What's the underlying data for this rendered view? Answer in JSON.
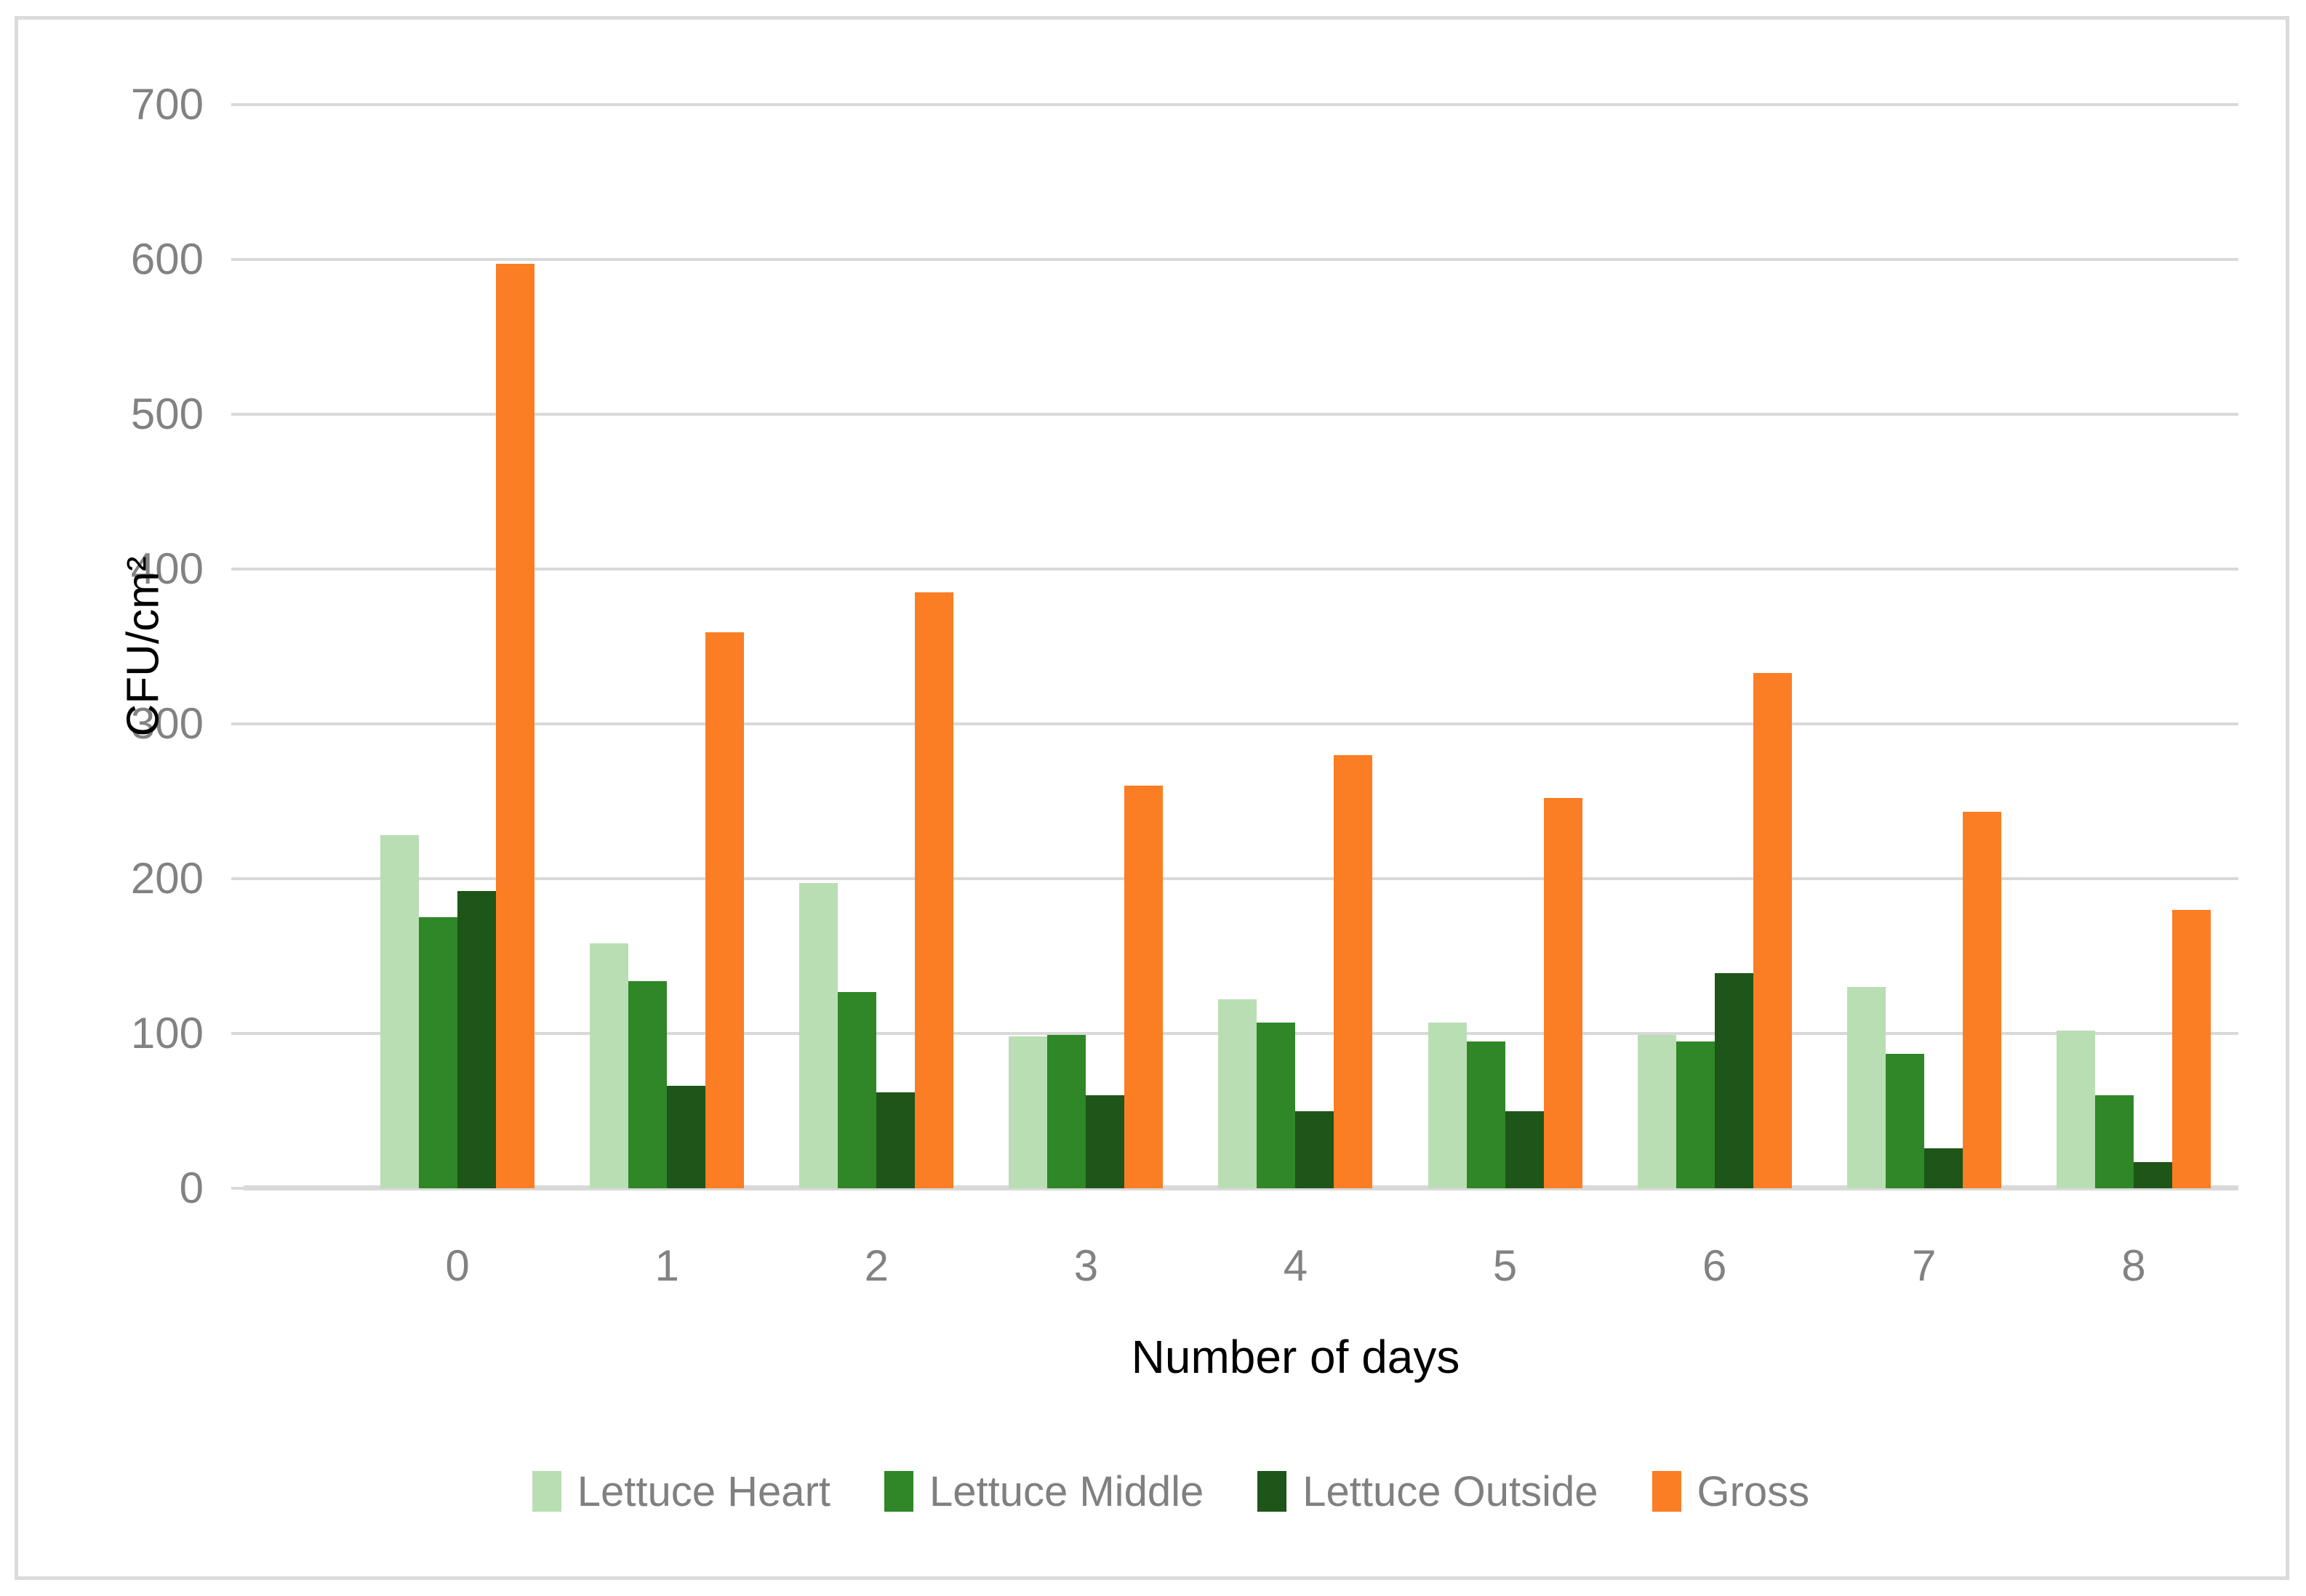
{
  "chart_data": {
    "type": "bar",
    "title": "",
    "xlabel": "Number of days",
    "ylabel": "CFU/cm²",
    "categories": [
      "0",
      "1",
      "2",
      "3",
      "4",
      "5",
      "6",
      "7",
      "8"
    ],
    "series": [
      {
        "name": "Lettuce Heart",
        "color": "#B9DEB3",
        "values": [
          228,
          158,
          197,
          98,
          122,
          107,
          99,
          130,
          102
        ]
      },
      {
        "name": "Lettuce Middle",
        "color": "#2F8727",
        "values": [
          175,
          134,
          127,
          99,
          107,
          95,
          95,
          87,
          60
        ]
      },
      {
        "name": "Lettuce Outside",
        "color": "#1E5518",
        "values": [
          192,
          66,
          62,
          60,
          50,
          50,
          139,
          26,
          17
        ]
      },
      {
        "name": "Gross",
        "color": "#FB7D24",
        "values": [
          597,
          359,
          385,
          260,
          280,
          252,
          333,
          243,
          180
        ]
      }
    ],
    "ylim": [
      0,
      700
    ],
    "ytick_interval": 100,
    "yticks": [
      "0",
      "100",
      "200",
      "300",
      "400",
      "500",
      "600",
      "700"
    ],
    "grid": true,
    "legend_position": "bottom"
  },
  "style_colors": {
    "gridline": "#D9D9D9",
    "axis_line": "#D9D9D9",
    "tick_label": "#828282",
    "legend_text": "#808080",
    "axis_title": "#000000",
    "frame_border": "#DBDBDB"
  }
}
